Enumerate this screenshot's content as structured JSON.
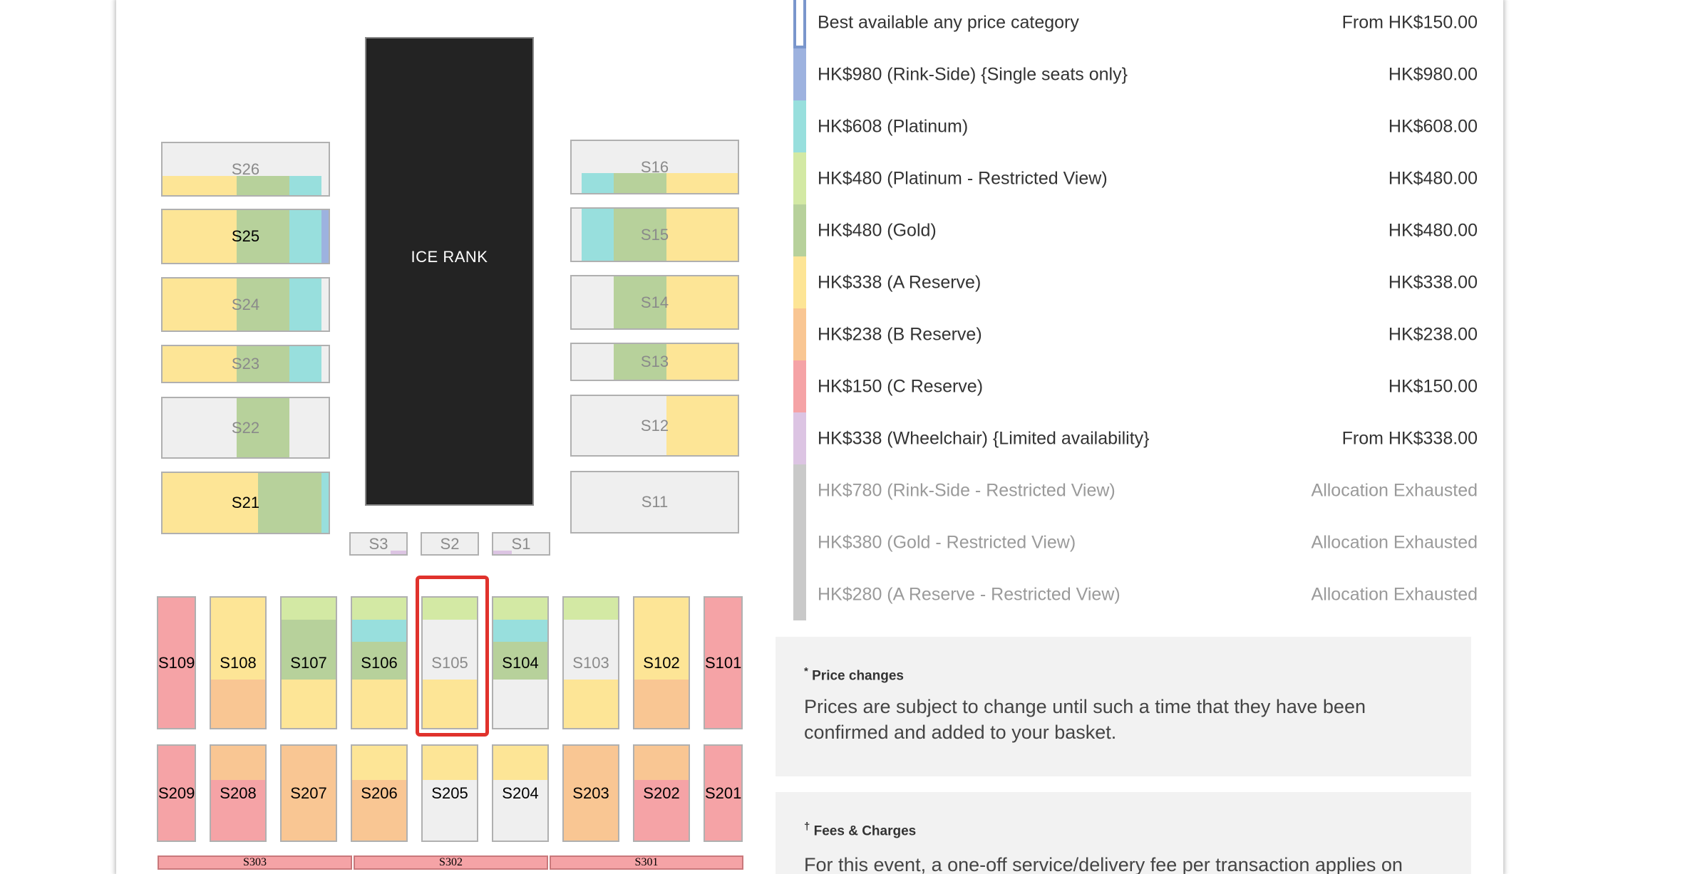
{
  "map": {
    "ice_label": "ICE RANK",
    "colors": {
      "rink_side": "#9db2df",
      "platinum": "#98dfdd",
      "platinum_rv": "#d3e9a4",
      "gold": "#b7d19b",
      "a_reserve": "#fde596",
      "b_reserve": "#f9c693",
      "c_reserve": "#f5a3a6",
      "wheelchair": "#dcc4e3",
      "unavailable": "#efefef"
    },
    "sections": {
      "s26": "S26",
      "s25": "S25",
      "s24": "S24",
      "s23": "S23",
      "s22": "S22",
      "s21": "S21",
      "s16": "S16",
      "s15": "S15",
      "s14": "S14",
      "s13": "S13",
      "s12": "S12",
      "s11": "S11",
      "s3": "S3",
      "s2": "S2",
      "s1": "S1",
      "s109": "S109",
      "s108": "S108",
      "s107": "S107",
      "s106": "S106",
      "s105": "S105",
      "s104": "S104",
      "s103": "S103",
      "s102": "S102",
      "s101": "S101",
      "s209": "S209",
      "s208": "S208",
      "s207": "S207",
      "s206": "S206",
      "s205": "S205",
      "s204": "S204",
      "s203": "S203",
      "s202": "S202",
      "s201": "S201",
      "s303": "S303",
      "s302": "S302",
      "s301": "S301"
    },
    "selected_section": "S105"
  },
  "legend": [
    {
      "name": "Best available any price category",
      "price": "From HK$150.00",
      "color": "#ffffff",
      "available": true
    },
    {
      "name": "HK$980 (Rink-Side) {Single seats only}",
      "price": "HK$980.00",
      "color": "#9db2df",
      "available": true
    },
    {
      "name": "HK$608 (Platinum)",
      "price": "HK$608.00",
      "color": "#98dfdd",
      "available": true
    },
    {
      "name": "HK$480 (Platinum - Restricted View)",
      "price": "HK$480.00",
      "color": "#d3e9a4",
      "available": true
    },
    {
      "name": "HK$480 (Gold)",
      "price": "HK$480.00",
      "color": "#b7d19b",
      "available": true
    },
    {
      "name": "HK$338 (A Reserve)",
      "price": "HK$338.00",
      "color": "#fde596",
      "available": true
    },
    {
      "name": "HK$238 (B Reserve)",
      "price": "HK$238.00",
      "color": "#f9c693",
      "available": true
    },
    {
      "name": "HK$150 (C Reserve)",
      "price": "HK$150.00",
      "color": "#f5a3a6",
      "available": true
    },
    {
      "name": "HK$338 (Wheelchair) {Limited availability}",
      "price": "From HK$338.00",
      "color": "#dcc4e3",
      "available": true
    },
    {
      "name": "HK$780 (Rink-Side - Restricted View)",
      "price": "Allocation Exhausted",
      "color": "#c9c9c9",
      "available": false
    },
    {
      "name": "HK$380 (Gold - Restricted View)",
      "price": "Allocation Exhausted",
      "color": "#c9c9c9",
      "available": false
    },
    {
      "name": "HK$280 (A Reserve - Restricted View)",
      "price": "Allocation Exhausted",
      "color": "#c9c9c9",
      "available": false
    }
  ],
  "price_changes": {
    "marker": "*",
    "title": "Price changes",
    "text": "Prices are subject to change until such a time that they have been confirmed and added to your basket."
  },
  "fees": {
    "marker": "†",
    "title": "Fees & Charges",
    "text": "For this event, a one-off service/delivery fee per transaction applies on"
  }
}
